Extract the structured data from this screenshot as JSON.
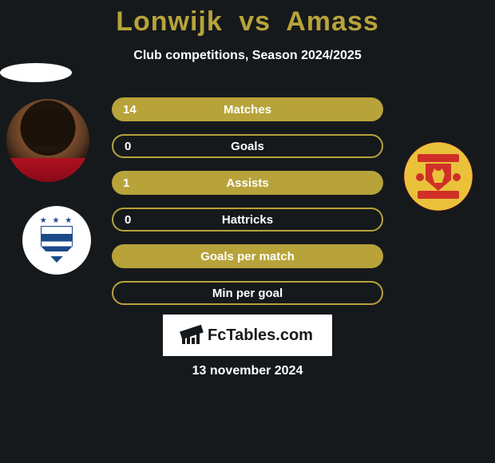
{
  "title": {
    "player1": "Lonwijk",
    "vs": "vs",
    "player2": "Amass",
    "color": "#b7a33a",
    "fontsize": 34
  },
  "subtitle": {
    "text": "Club competitions, Season 2024/2025",
    "color": "#ffffff",
    "fontsize": 16
  },
  "colors": {
    "background": "#16191c",
    "accent": "#b7a33a",
    "text_on_accent": "#ffffff",
    "white": "#ffffff"
  },
  "stats": {
    "label_fontsize": 15,
    "value_fontsize": 15,
    "rows": [
      {
        "label": "Matches",
        "left": "14",
        "right": "",
        "style": "filled"
      },
      {
        "label": "Goals",
        "left": "0",
        "right": "",
        "style": "border"
      },
      {
        "label": "Assists",
        "left": "1",
        "right": "",
        "style": "filled"
      },
      {
        "label": "Hattricks",
        "left": "0",
        "right": "",
        "style": "border"
      },
      {
        "label": "Goals per match",
        "left": "",
        "right": "",
        "style": "filled"
      },
      {
        "label": "Min per goal",
        "left": "",
        "right": "",
        "style": "border"
      }
    ]
  },
  "brand": {
    "text": "FcTables.com",
    "fontsize": 20
  },
  "date": {
    "text": "13 november 2024",
    "color": "#ffffff",
    "fontsize": 16
  },
  "images": {
    "player_left": "player-photo-lonwijk",
    "club_left": "huddersfield-crest",
    "player_right": "player-placeholder-amass",
    "club_right": "manchester-united-crest"
  }
}
